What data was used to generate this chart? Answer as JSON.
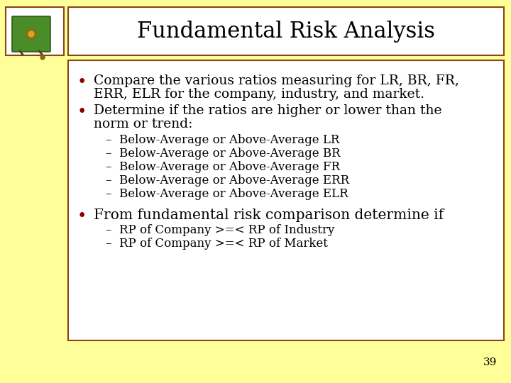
{
  "background_color": "#FFFF99",
  "title": "Fundamental Risk Analysis",
  "title_bg": "#FFFFFF",
  "border_color": "#8B4513",
  "title_fontsize": 22,
  "content_bg": "#FFFFFF",
  "text_color": "#000000",
  "bullet_color": "#8B0000",
  "page_number": "39",
  "bullet1_line1": "Compare the various ratios measuring for LR, BR, FR,",
  "bullet1_line2": "ERR, ELR for the company, industry, and market.",
  "bullet2_line1": "Determine if the ratios are higher or lower than the",
  "bullet2_line2": "norm or trend:",
  "sub_bullets": [
    "Below-Average or Above-Average LR",
    "Below-Average or Above-Average BR",
    "Below-Average or Above-Average FR",
    "Below-Average or Above-Average ERR",
    "Below-Average or Above-Average ELR"
  ],
  "bullet3": "From fundamental risk comparison determine if",
  "sub_bullets2": [
    "RP of Company >=< RP of Industry",
    "RP of Company >=< RP of Market"
  ],
  "main_fs": 13.5,
  "sub_fs": 12.0,
  "title_fs": 22
}
